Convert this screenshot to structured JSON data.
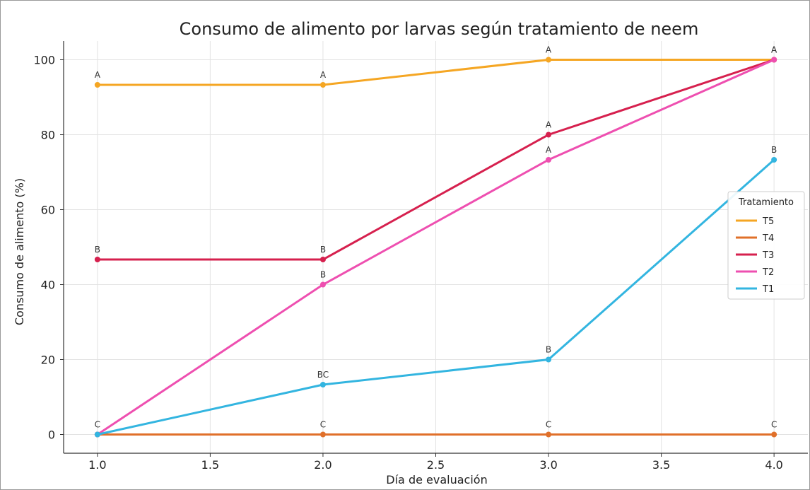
{
  "chart_data": {
    "type": "line",
    "title": "Consumo de alimento por larvas según tratamiento de neem",
    "xlabel": "Día de evaluación",
    "ylabel": "Consumo de alimento (%)",
    "x": [
      1.0,
      2.0,
      3.0,
      4.0
    ],
    "xlim": [
      0.85,
      4.15
    ],
    "ylim": [
      -5,
      105
    ],
    "xticks": [
      1.0,
      1.5,
      2.0,
      2.5,
      3.0,
      3.5,
      4.0
    ],
    "xtick_labels": [
      "1.0",
      "1.5",
      "2.0",
      "2.5",
      "3.0",
      "3.5",
      "4.0"
    ],
    "yticks": [
      0,
      20,
      40,
      60,
      80,
      100
    ],
    "ytick_labels": [
      "0",
      "20",
      "40",
      "60",
      "80",
      "100"
    ],
    "grid": true,
    "legend": {
      "title": "Tratamiento",
      "placement": "right"
    },
    "series": [
      {
        "name": "T5",
        "color": "#f5a623",
        "values": [
          93.3,
          93.3,
          100,
          100
        ],
        "labels": [
          "A",
          "A",
          "A",
          "A"
        ]
      },
      {
        "name": "T4",
        "color": "#e0702a",
        "values": [
          0,
          0,
          0,
          0
        ],
        "labels": [
          "C",
          "C",
          "C",
          "C"
        ]
      },
      {
        "name": "T3",
        "color": "#d6204e",
        "values": [
          46.7,
          46.7,
          80,
          100
        ],
        "labels": [
          "B",
          "B",
          "A",
          "A"
        ]
      },
      {
        "name": "T2",
        "color": "#ee4fb0",
        "values": [
          0,
          40,
          73.3,
          100
        ],
        "labels": [
          "",
          "B",
          "A",
          ""
        ]
      },
      {
        "name": "T1",
        "color": "#33b5e0",
        "values": [
          0,
          13.3,
          20,
          73.3
        ],
        "labels": [
          "",
          "BC",
          "B",
          "B"
        ]
      }
    ]
  }
}
